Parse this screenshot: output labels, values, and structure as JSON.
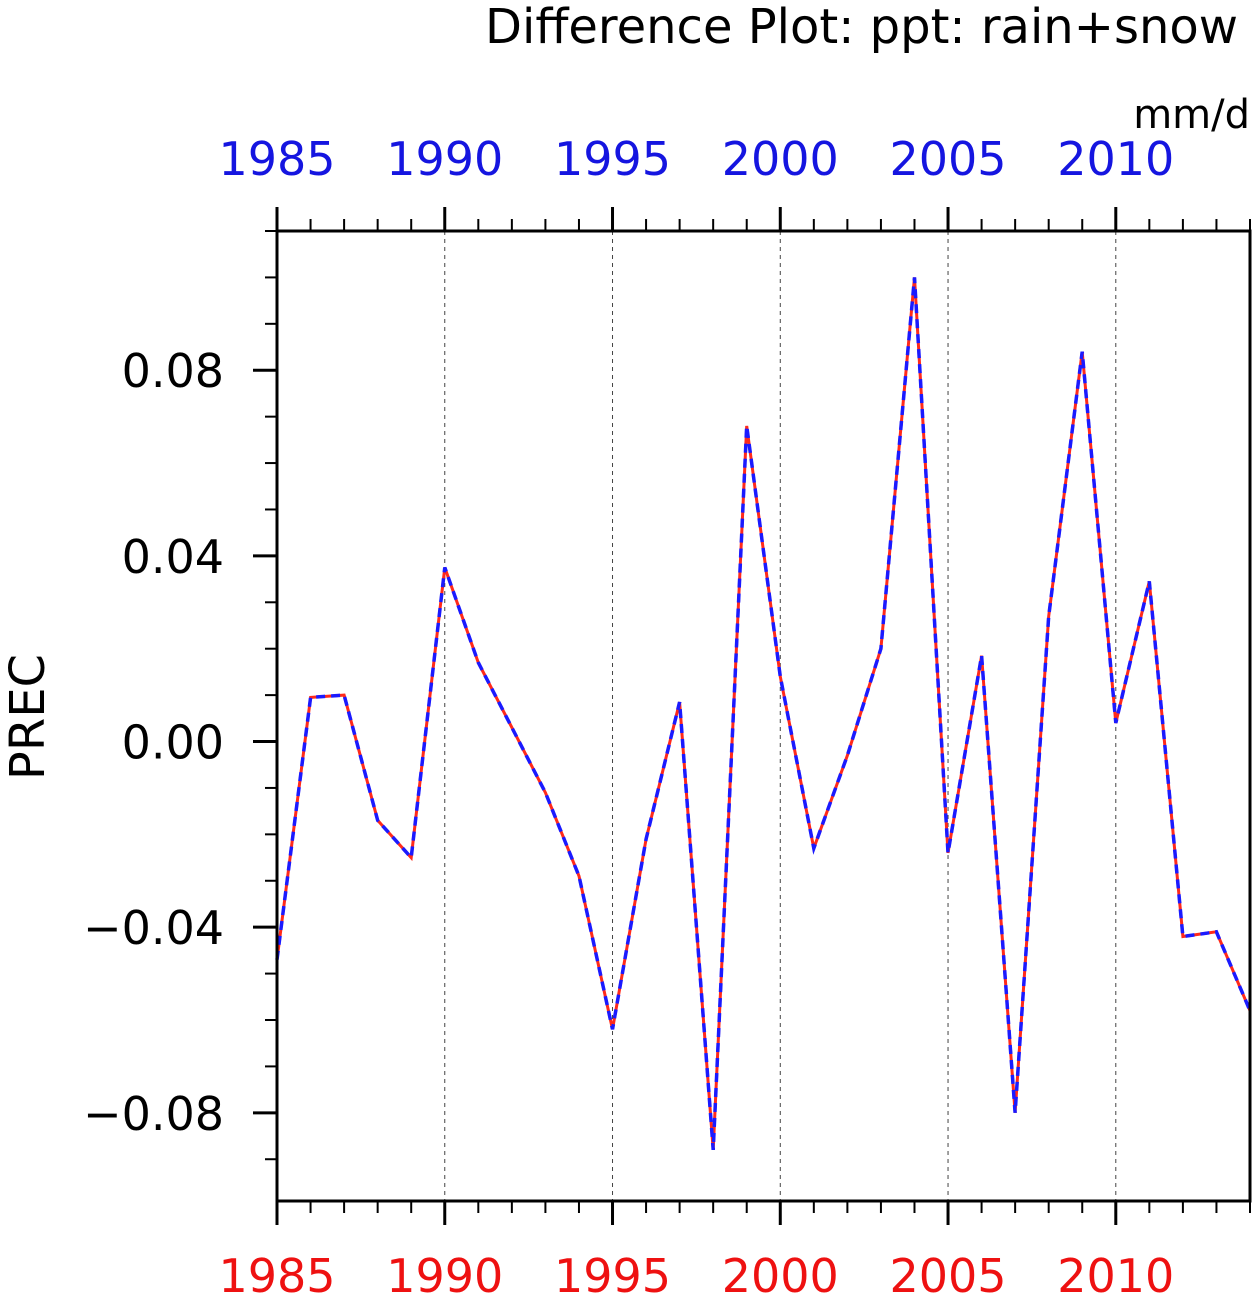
{
  "chart_data": {
    "type": "line",
    "title": "Difference Plot: ppt: rain+snow",
    "units": "mm/d",
    "ylabel": "PREC",
    "xlabel": "",
    "xlim": [
      1985,
      2014
    ],
    "ylim": [
      -0.099,
      0.11
    ],
    "grid": "vertical dashed at x ticks",
    "y_major_ticks": [
      0.08,
      0.04,
      0.0,
      -0.04,
      -0.08
    ],
    "y_tick_labels": [
      "0.08",
      "0.04",
      "0.00",
      "−0.04",
      "−0.08"
    ],
    "y_minor_step": 0.01,
    "x_major_ticks": [
      1985,
      1990,
      1995,
      2000,
      2005,
      2010
    ],
    "x_tick_labels_top": [
      "1985",
      "1990",
      "1995",
      "2000",
      "2005",
      "2010"
    ],
    "x_tick_labels_bottom": [
      "1985",
      "1990",
      "1995",
      "2000",
      "2005",
      "2010"
    ],
    "colors": {
      "top_axis_labels": "#1515e0",
      "bottom_axis_labels": "#ee1111",
      "series_a": "#ff2a1a",
      "series_b": "#1a1aff",
      "axis": "#000000",
      "text": "#000000"
    },
    "x": [
      1985,
      1986,
      1987,
      1988,
      1989,
      1990,
      1991,
      1992,
      1993,
      1994,
      1995,
      1996,
      1997,
      1998,
      1999,
      2000,
      2001,
      2002,
      2003,
      2004,
      2005,
      2006,
      2007,
      2008,
      2009,
      2010,
      2011,
      2012,
      2013,
      2014
    ],
    "series": [
      {
        "style": "solid",
        "color": "#ff2a1a",
        "values": [
          -0.047,
          0.0095,
          0.01,
          -0.017,
          -0.025,
          0.0375,
          0.017,
          0.003,
          -0.011,
          -0.029,
          -0.062,
          -0.021,
          0.0085,
          -0.088,
          0.068,
          0.014,
          -0.023,
          -0.003,
          0.02,
          0.1,
          -0.024,
          0.0185,
          -0.08,
          0.027,
          0.084,
          0.004,
          0.0345,
          -0.042,
          -0.041,
          -0.058
        ]
      },
      {
        "style": "dashed",
        "color": "#1a1aff",
        "values": [
          -0.047,
          0.0095,
          0.01,
          -0.017,
          -0.025,
          0.0375,
          0.017,
          0.003,
          -0.011,
          -0.029,
          -0.062,
          -0.021,
          0.0085,
          -0.088,
          0.068,
          0.014,
          -0.023,
          -0.003,
          0.02,
          0.1,
          -0.024,
          0.0185,
          -0.08,
          0.027,
          0.084,
          0.004,
          0.0345,
          -0.042,
          -0.041,
          -0.058
        ]
      }
    ]
  }
}
